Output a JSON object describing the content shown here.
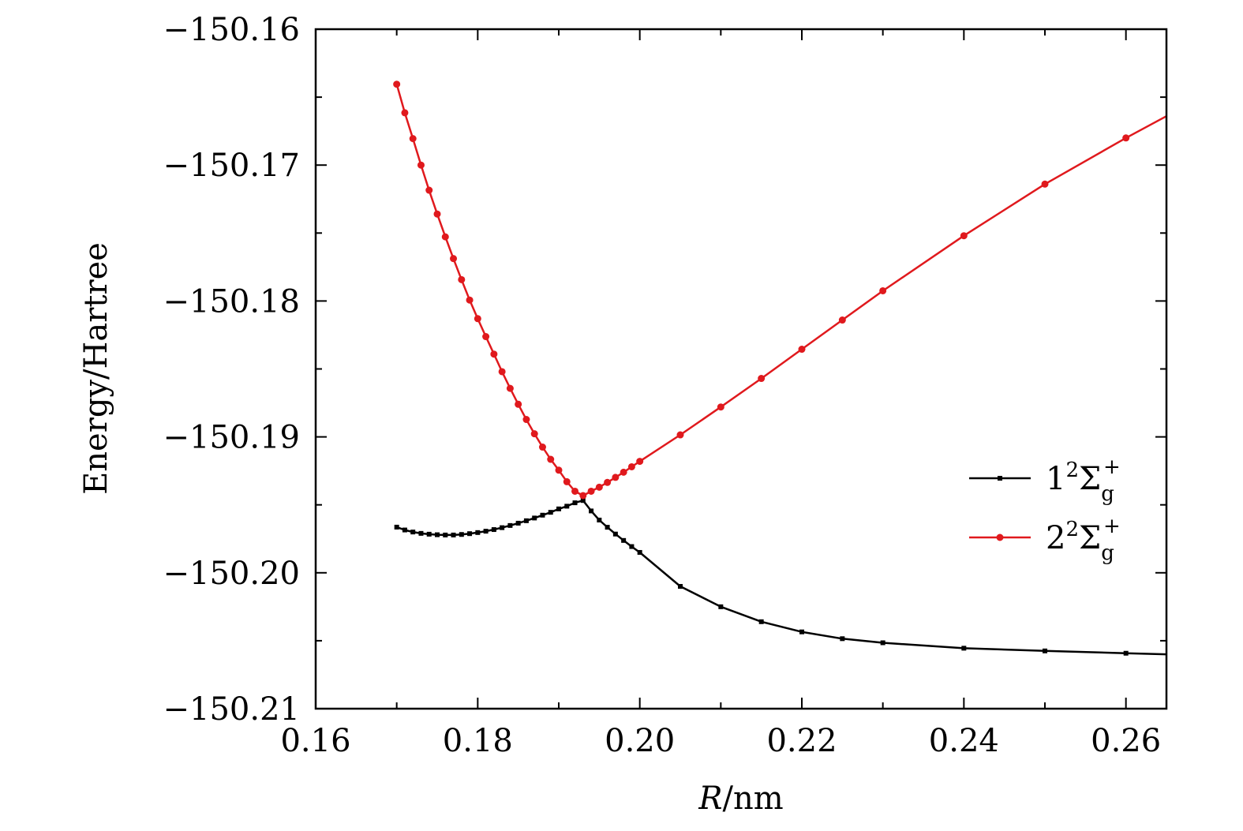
{
  "chart_data": {
    "type": "line",
    "title": "",
    "xlabel": {
      "italic": "R",
      "rest": "/nm"
    },
    "ylabel": "Energy/Hartree",
    "xlim": [
      0.16,
      0.265
    ],
    "ylim": [
      -150.21,
      -150.16
    ],
    "x_ticks": [
      "0.16",
      "0.18",
      "0.20",
      "0.22",
      "0.24",
      "0.26"
    ],
    "x_tick_values": [
      0.16,
      0.18,
      0.2,
      0.22,
      0.24,
      0.26
    ],
    "y_ticks": [
      "−150.16",
      "−150.17",
      "−150.18",
      "−150.19",
      "−150.20",
      "−150.21"
    ],
    "y_tick_values": [
      -150.16,
      -150.17,
      -150.18,
      -150.19,
      -150.2,
      -150.21
    ],
    "grid": false,
    "legend_position": "right",
    "series": [
      {
        "name": "1²Σg⁺",
        "legend_main": "1",
        "legend_sup": "2",
        "legend_sigma": "Σ",
        "legend_sub": "g",
        "legend_plus": "+",
        "color": "#000000",
        "marker": "square",
        "x": [
          0.17,
          0.171,
          0.172,
          0.173,
          0.174,
          0.175,
          0.176,
          0.177,
          0.178,
          0.179,
          0.18,
          0.181,
          0.182,
          0.183,
          0.184,
          0.185,
          0.186,
          0.187,
          0.188,
          0.189,
          0.19,
          0.191,
          0.192,
          0.193,
          0.194,
          0.195,
          0.196,
          0.197,
          0.198,
          0.199,
          0.2,
          0.205,
          0.21,
          0.215,
          0.22,
          0.225,
          0.23,
          0.24,
          0.25,
          0.26,
          0.265
        ],
        "y": [
          -150.19664,
          -150.19685,
          -150.197,
          -150.1971,
          -150.19716,
          -150.1972,
          -150.19722,
          -150.19722,
          -150.19718,
          -150.19712,
          -150.19704,
          -150.19694,
          -150.19682,
          -150.19668,
          -150.19652,
          -150.19635,
          -150.19617,
          -150.19597,
          -150.19576,
          -150.19555,
          -150.1953,
          -150.1951,
          -150.19485,
          -150.19468,
          -150.19545,
          -150.19612,
          -150.19665,
          -150.19715,
          -150.19762,
          -150.19807,
          -150.1985,
          -150.201,
          -150.2025,
          -150.2036,
          -150.20435,
          -150.20485,
          -150.20515,
          -150.20555,
          -150.20575,
          -150.20592,
          -150.206
        ]
      },
      {
        "name": "2²Σg⁺",
        "legend_main": "2",
        "legend_sup": "2",
        "legend_sigma": "Σ",
        "legend_sub": "g",
        "legend_plus": "+",
        "color": "#e0191d",
        "marker": "circle",
        "x": [
          0.17,
          0.171,
          0.172,
          0.173,
          0.174,
          0.175,
          0.176,
          0.177,
          0.178,
          0.179,
          0.18,
          0.181,
          0.182,
          0.183,
          0.184,
          0.185,
          0.186,
          0.187,
          0.188,
          0.189,
          0.19,
          0.191,
          0.192,
          0.193,
          0.194,
          0.195,
          0.196,
          0.197,
          0.198,
          0.199,
          0.2,
          0.205,
          0.21,
          0.215,
          0.22,
          0.225,
          0.23,
          0.24,
          0.25,
          0.26,
          0.265
        ],
        "y": [
          -150.16405,
          -150.16615,
          -150.16805,
          -150.17,
          -150.17185,
          -150.1736,
          -150.17528,
          -150.17688,
          -150.17843,
          -150.17993,
          -150.1813,
          -150.18262,
          -150.18391,
          -150.1852,
          -150.18643,
          -150.1876,
          -150.18872,
          -150.18977,
          -150.19075,
          -150.19165,
          -150.19245,
          -150.1933,
          -150.194,
          -150.19432,
          -150.194,
          -150.1937,
          -150.19335,
          -150.19298,
          -150.1926,
          -150.1922,
          -150.1918,
          -150.18985,
          -150.1878,
          -150.1857,
          -150.18355,
          -150.1814,
          -150.17925,
          -150.1752,
          -150.1714,
          -150.168,
          -150.1664
        ]
      }
    ]
  }
}
